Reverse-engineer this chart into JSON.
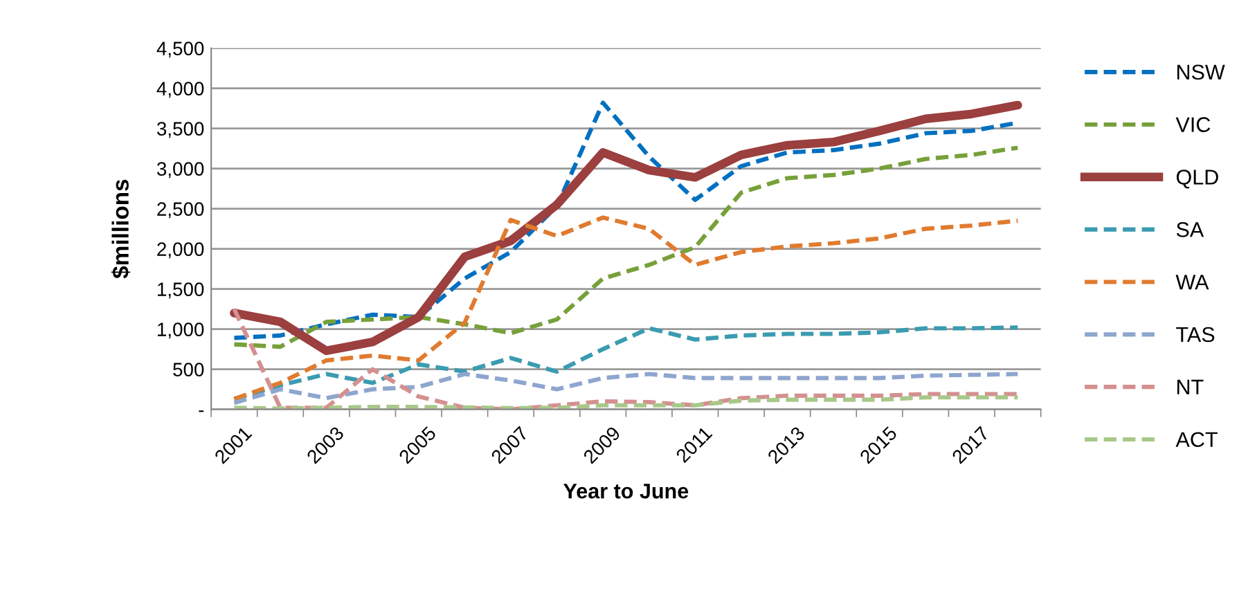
{
  "chart_data": {
    "type": "line",
    "xlabel": "Year to June",
    "ylabel": "$millions",
    "categories": [
      "2001",
      null,
      "2003",
      null,
      "2005",
      null,
      "2007",
      null,
      "2009",
      null,
      "2011",
      null,
      "2013",
      null,
      "2015",
      null,
      "2017",
      null
    ],
    "ylim": [
      0,
      4500
    ],
    "yticks": [
      {
        "value": 0,
        "label": "-"
      },
      {
        "value": 500,
        "label": "500"
      },
      {
        "value": 1000,
        "label": "1,000"
      },
      {
        "value": 1500,
        "label": "1,500"
      },
      {
        "value": 2000,
        "label": "2,000"
      },
      {
        "value": 2500,
        "label": "2,500"
      },
      {
        "value": 3000,
        "label": "3,000"
      },
      {
        "value": 3500,
        "label": "3,500"
      },
      {
        "value": 4000,
        "label": "4,000"
      },
      {
        "value": 4500,
        "label": "4,500"
      }
    ],
    "grid": "y",
    "legend": "right",
    "marker": "none",
    "series": [
      {
        "name": "NSW",
        "color": "#0070c0",
        "line_style": "dashed",
        "values": [
          890,
          920,
          1060,
          1180,
          1150,
          1630,
          1960,
          2530,
          3820,
          3150,
          2610,
          3030,
          3200,
          3230,
          3310,
          3440,
          3470,
          3570
        ]
      },
      {
        "name": "VIC",
        "color": "#77a03a",
        "line_style": "dashed",
        "values": [
          810,
          780,
          1090,
          1120,
          1150,
          1060,
          950,
          1120,
          1630,
          1800,
          2020,
          2700,
          2880,
          2920,
          3000,
          3120,
          3170,
          3260
        ]
      },
      {
        "name": "QLD",
        "color": "#9b3f3f",
        "line_style": "solid",
        "values": [
          1200,
          1090,
          730,
          840,
          1150,
          1900,
          2100,
          2550,
          3200,
          2980,
          2890,
          3170,
          3290,
          3330,
          3470,
          3620,
          3680,
          3790
        ]
      },
      {
        "name": "SA",
        "color": "#3b9bb0",
        "line_style": "dashed",
        "values": [
          130,
          300,
          440,
          330,
          560,
          470,
          640,
          470,
          750,
          1010,
          870,
          920,
          940,
          940,
          960,
          1010,
          1010,
          1020
        ]
      },
      {
        "name": "WA",
        "color": "#e07b2f",
        "line_style": "dashed",
        "values": [
          130,
          330,
          610,
          670,
          610,
          1080,
          2360,
          2160,
          2390,
          2250,
          1800,
          1960,
          2030,
          2070,
          2130,
          2250,
          2290,
          2350
        ]
      },
      {
        "name": "TAS",
        "color": "#8ea6cf",
        "line_style": "dashed",
        "values": [
          80,
          250,
          140,
          250,
          280,
          440,
          360,
          250,
          390,
          440,
          390,
          390,
          390,
          390,
          390,
          420,
          430,
          440
        ]
      },
      {
        "name": "NT",
        "color": "#d49090",
        "line_style": "dashed",
        "values": [
          1250,
          20,
          20,
          500,
          160,
          20,
          0,
          50,
          100,
          90,
          50,
          140,
          170,
          170,
          170,
          190,
          190,
          190
        ]
      },
      {
        "name": "ACT",
        "color": "#a8c88a",
        "line_style": "dashed",
        "values": [
          20,
          10,
          20,
          30,
          30,
          25,
          15,
          20,
          50,
          50,
          50,
          110,
          120,
          120,
          120,
          150,
          150,
          150
        ]
      }
    ]
  }
}
